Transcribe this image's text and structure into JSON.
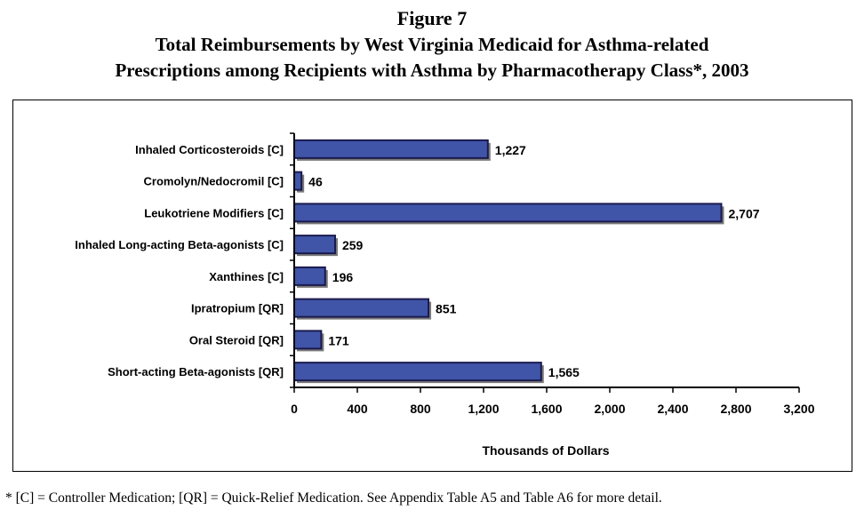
{
  "figure": {
    "label": "Figure 7",
    "title_line1": "Total Reimbursements by West Virginia Medicaid for Asthma-related",
    "title_line2": "Prescriptions among Recipients with Asthma by Pharmacotherapy Class*, 2003"
  },
  "chart_data": {
    "type": "bar",
    "orientation": "horizontal",
    "categories": [
      "Inhaled Corticosteroids [C]",
      "Cromolyn/Nedocromil [C]",
      "Leukotriene Modifiers [C]",
      "Inhaled Long-acting Beta-agonists [C]",
      "Xanthines [C]",
      "Ipratropium [QR]",
      "Oral Steroid [QR]",
      "Short-acting Beta-agonists [QR]"
    ],
    "values": [
      1227,
      46,
      2707,
      259,
      196,
      851,
      171,
      1565
    ],
    "value_labels": [
      "1,227",
      "46",
      "2,707",
      "259",
      "196",
      "851",
      "171",
      "1,565"
    ],
    "xlabel": "Thousands of Dollars",
    "ylabel": "",
    "xlim": [
      0,
      3200
    ],
    "xticks": [
      0,
      400,
      800,
      1200,
      1600,
      2000,
      2400,
      2800,
      3200
    ],
    "xtick_labels": [
      "0",
      "400",
      "800",
      "1,200",
      "1,600",
      "2,000",
      "2,400",
      "2,800",
      "3,200"
    ],
    "grid": false,
    "legend": "none",
    "bar_color": "#4055a8",
    "bar_edge_color": "#1a1a4e",
    "bar_shadow_color": "#7a7a7a"
  },
  "footnote": "* [C] = Controller Medication; [QR] = Quick-Relief Medication. See Appendix Table A5 and Table A6 for more detail."
}
